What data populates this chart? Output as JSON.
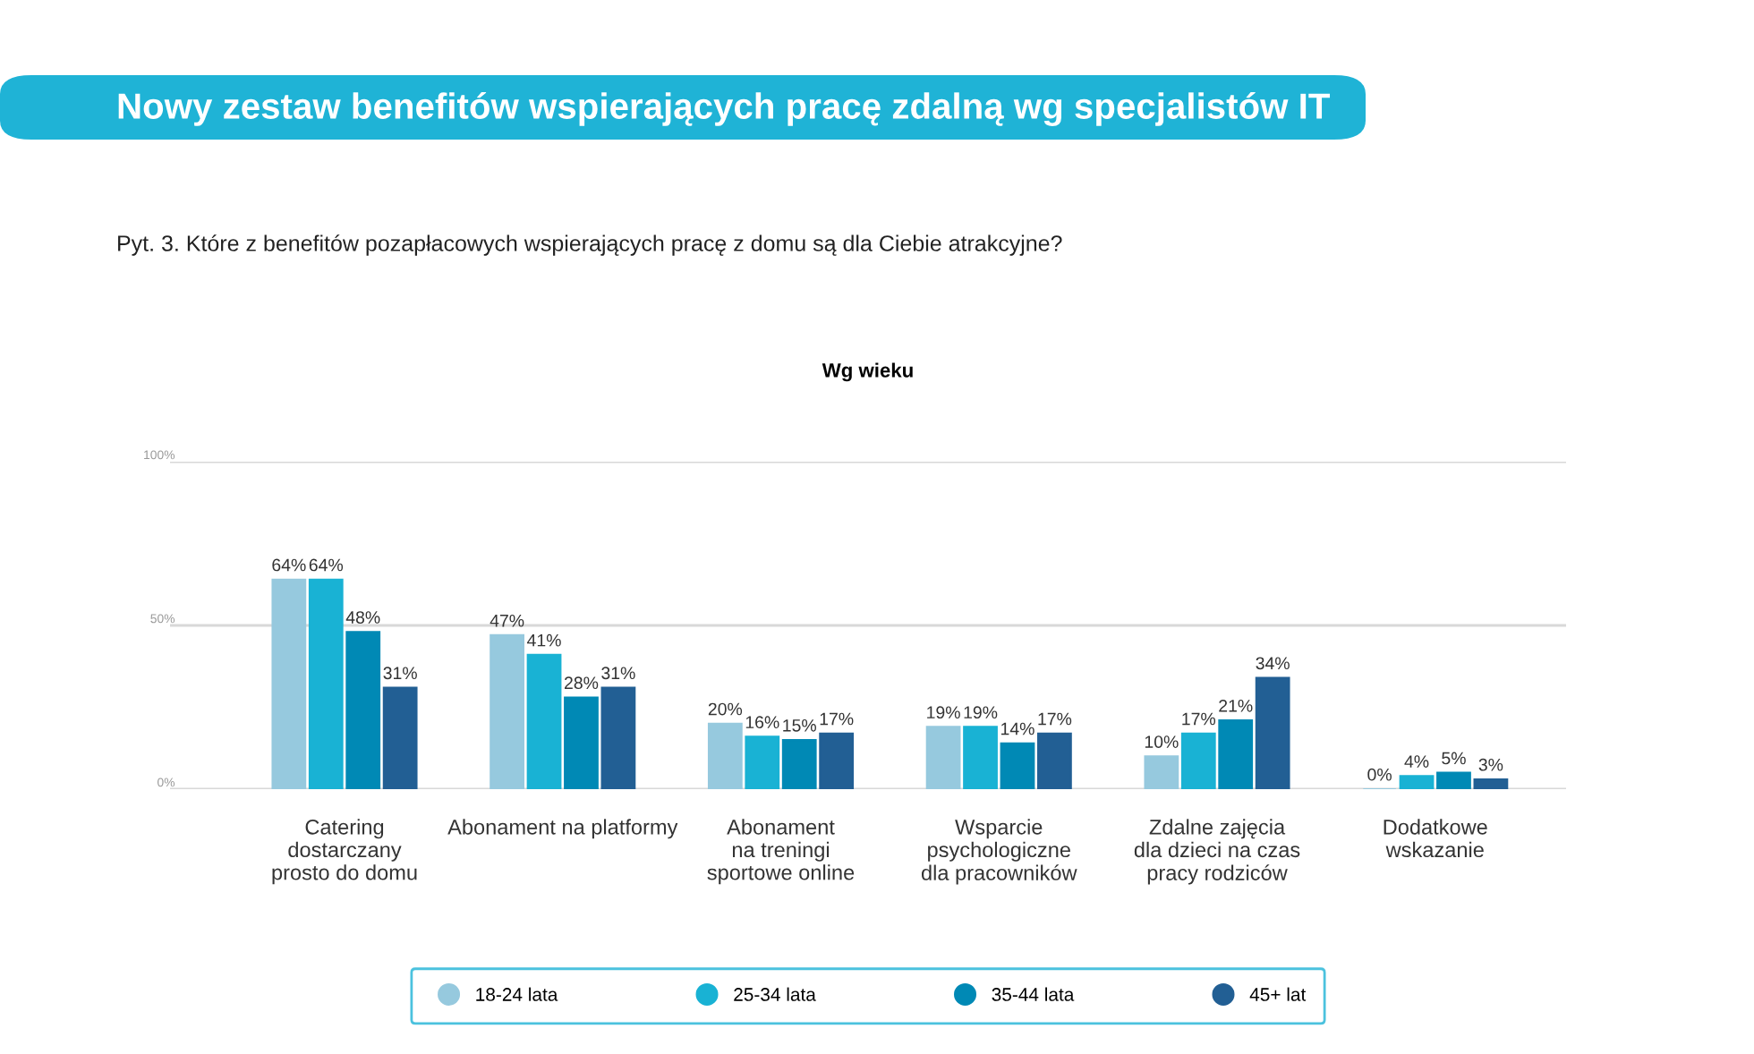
{
  "chart_data": {
    "type": "bar",
    "title": "Nowy zestaw benefitów wspierających pracę zdalną wg specjalistów IT",
    "subtitle": "Pyt. 3. Które z benefitów pozapłacowych wspierających pracę z domu są dla Ciebie atrakcyjne?",
    "annotations": [
      "Wg wieku"
    ],
    "categories": [
      "Catering\ndostarczany\nprosto do domu",
      "Abonament na platformy",
      "Abonament\nna treningi\nsportowe online",
      "Wsparcie\npsychologiczne\ndla pracowników",
      "Zdalne zajęcia\ndla dzieci na czas\npracy rodziców",
      "Dodatkowe\nwskazanie"
    ],
    "series": [
      {
        "name": "18-24 lata",
        "color": "#96c9de",
        "values": [
          64,
          47,
          20,
          19,
          10,
          0
        ],
        "value_labels": [
          "64%",
          "47%",
          "20%",
          "19%",
          "10%",
          "0%"
        ]
      },
      {
        "name": "25-34 lata",
        "color": "#19b2d4",
        "values": [
          64,
          41,
          16,
          19,
          17,
          4
        ],
        "value_labels": [
          "64%",
          "41%",
          "16%",
          "19%",
          "17%",
          "4%"
        ]
      },
      {
        "name": "35-44 lata",
        "color": "#0089b5",
        "values": [
          48,
          28,
          15,
          14,
          21,
          5
        ],
        "value_labels": [
          "48%",
          "28%",
          "15%",
          "14%",
          "21%",
          "5%"
        ]
      },
      {
        "name": "45+ lat",
        "color": "#225f94",
        "values": [
          31,
          31,
          17,
          17,
          34,
          3
        ],
        "value_labels": [
          "31%",
          "31%",
          "17%",
          "17%",
          "34%",
          "3%"
        ]
      }
    ],
    "ylim": [
      0,
      100
    ],
    "yticks": [
      {
        "value": 0,
        "label": "0%"
      },
      {
        "value": 50,
        "label": "50%"
      },
      {
        "value": 100,
        "label": "100%"
      }
    ],
    "grid": "y",
    "legend": "bottom"
  }
}
